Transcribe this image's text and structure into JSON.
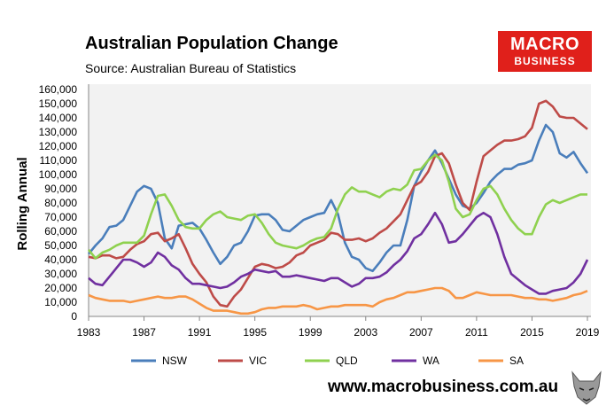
{
  "header": {
    "title": "Australian Population Change",
    "subtitle": "Source: Australian Bureau of Statistics"
  },
  "logo": {
    "line1": "MACRO",
    "line2": "BUSINESS",
    "color": "#e0201b"
  },
  "footer": {
    "url": "www.macrobusiness.com.au"
  },
  "chart_data": {
    "type": "line",
    "title": "Australian Population Change",
    "xlabel": "",
    "ylabel": "Rolling Annual",
    "xlim": [
      1983,
      2019
    ],
    "ylim": [
      0,
      160000
    ],
    "x_ticks": [
      "1983",
      "1987",
      "1991",
      "1995",
      "1999",
      "2003",
      "2007",
      "2011",
      "2015",
      "2019"
    ],
    "y_ticks": [
      "0",
      "10,000",
      "20,000",
      "30,000",
      "40,000",
      "50,000",
      "60,000",
      "70,000",
      "80,000",
      "90,000",
      "100,000",
      "110,000",
      "120,000",
      "130,000",
      "140,000",
      "150,000",
      "160,000"
    ],
    "grid": false,
    "legend": "bottom",
    "x_step": 0.5,
    "series": [
      {
        "name": "NSW",
        "color": "#4a7ebb",
        "values": [
          44000,
          50000,
          55000,
          63000,
          64000,
          68000,
          78000,
          88000,
          92000,
          90000,
          80000,
          55000,
          48000,
          64000,
          65000,
          66000,
          62000,
          54000,
          45000,
          37000,
          42000,
          50000,
          52000,
          60000,
          71000,
          72000,
          72000,
          68000,
          61000,
          60000,
          64000,
          68000,
          70000,
          72000,
          73000,
          82000,
          72000,
          52000,
          42000,
          40000,
          34000,
          32000,
          38000,
          45000,
          50000,
          50000,
          68000,
          92000,
          102000,
          110000,
          117000,
          108000,
          97000,
          86000,
          78000,
          76000,
          80000,
          87000,
          95000,
          100000,
          104000,
          104000,
          107000,
          108000,
          110000,
          124000,
          135000,
          130000,
          115000,
          112000,
          116000,
          108000,
          101000
        ]
      },
      {
        "name": "VIC",
        "color": "#be4b48",
        "values": [
          42000,
          41000,
          43000,
          43000,
          41000,
          42000,
          47000,
          51000,
          53000,
          58000,
          59000,
          53000,
          55000,
          58000,
          48000,
          37000,
          30000,
          24000,
          14000,
          8000,
          7000,
          14000,
          19000,
          27000,
          35000,
          37000,
          36000,
          34000,
          35000,
          38000,
          43000,
          45000,
          50000,
          52000,
          54000,
          59000,
          58000,
          54000,
          54000,
          55000,
          53000,
          55000,
          59000,
          62000,
          67000,
          72000,
          82000,
          92000,
          95000,
          102000,
          113000,
          115000,
          108000,
          93000,
          80000,
          75000,
          95000,
          113000,
          117000,
          121000,
          124000,
          124000,
          125000,
          127000,
          133000,
          150000,
          152000,
          148000,
          141000,
          140000,
          140000,
          136000,
          132000
        ]
      },
      {
        "name": "QLD",
        "color": "#8fd14f",
        "values": [
          47000,
          41000,
          45000,
          47000,
          50000,
          52000,
          52000,
          52000,
          57000,
          72000,
          85000,
          86000,
          78000,
          68000,
          63000,
          62000,
          62000,
          68000,
          72000,
          74000,
          70000,
          69000,
          68000,
          71000,
          72000,
          66000,
          58000,
          52000,
          50000,
          49000,
          48000,
          50000,
          53000,
          55000,
          56000,
          62000,
          76000,
          86000,
          91000,
          88000,
          88000,
          86000,
          84000,
          88000,
          90000,
          89000,
          93000,
          103000,
          104000,
          110000,
          114000,
          110000,
          95000,
          76000,
          70000,
          72000,
          82000,
          90000,
          92000,
          86000,
          76000,
          68000,
          62000,
          58000,
          58000,
          70000,
          79000,
          82000,
          80000,
          82000,
          84000,
          86000,
          86000
        ]
      },
      {
        "name": "WA",
        "color": "#7030a0",
        "values": [
          27000,
          23000,
          22000,
          28000,
          34000,
          40000,
          40000,
          38000,
          35000,
          38000,
          45000,
          42000,
          36000,
          33000,
          27000,
          23000,
          23000,
          22000,
          21000,
          20000,
          21000,
          24000,
          28000,
          30000,
          33000,
          32000,
          31000,
          32000,
          28000,
          28000,
          29000,
          28000,
          27000,
          26000,
          25000,
          27000,
          27000,
          24000,
          21000,
          23000,
          27000,
          27000,
          28000,
          31000,
          36000,
          40000,
          46000,
          55000,
          58000,
          65000,
          73000,
          65000,
          52000,
          53000,
          58000,
          64000,
          70000,
          73000,
          70000,
          58000,
          42000,
          30000,
          26000,
          22000,
          19000,
          16000,
          16000,
          18000,
          19000,
          20000,
          24000,
          30000,
          40000
        ]
      },
      {
        "name": "SA",
        "color": "#f79646",
        "values": [
          15000,
          13000,
          12000,
          11000,
          11000,
          11000,
          10000,
          11000,
          12000,
          13000,
          14000,
          13000,
          13000,
          14000,
          14000,
          12000,
          9000,
          6000,
          4000,
          4000,
          4000,
          3000,
          2000,
          2000,
          3000,
          5000,
          6000,
          6000,
          7000,
          7000,
          7000,
          8000,
          7000,
          5000,
          6000,
          7000,
          7000,
          8000,
          8000,
          8000,
          8000,
          7000,
          10000,
          12000,
          13000,
          15000,
          17000,
          17000,
          18000,
          19000,
          20000,
          20000,
          18000,
          13000,
          13000,
          15000,
          17000,
          16000,
          15000,
          15000,
          15000,
          15000,
          14000,
          13000,
          13000,
          12000,
          12000,
          11000,
          12000,
          13000,
          15000,
          16000,
          18000
        ]
      }
    ]
  }
}
